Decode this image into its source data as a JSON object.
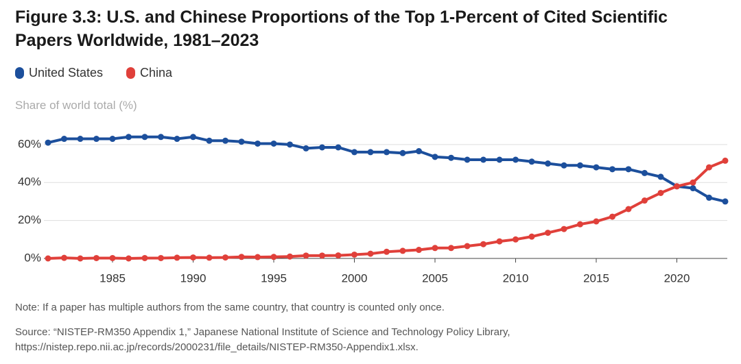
{
  "chart_data": {
    "type": "line",
    "title": "Figure 3.3: U.S. and Chinese Proportions of the Top 1-Percent of Cited Scientific Papers Worldwide, 1981–2023",
    "y_axis_label": "Share of world total (%)",
    "note": "Note: If a paper has multiple authors from the same country, that country is counted only once.",
    "source": "Source: “NISTEP-RM350 Appendix 1,” Japanese National Institute of Science and Technology Policy Library, https://nistep.repo.nii.ac.jp/records/2000231/file_details/NISTEP-RM350-Appendix1.xlsx.",
    "x": [
      1981,
      1982,
      1983,
      1984,
      1985,
      1986,
      1987,
      1988,
      1989,
      1990,
      1991,
      1992,
      1993,
      1994,
      1995,
      1996,
      1997,
      1998,
      1999,
      2000,
      2001,
      2002,
      2003,
      2004,
      2005,
      2006,
      2007,
      2008,
      2009,
      2010,
      2011,
      2012,
      2013,
      2014,
      2015,
      2016,
      2017,
      2018,
      2019,
      2020,
      2021,
      2022,
      2023
    ],
    "series": [
      {
        "name": "United States",
        "color": "#1c4f9c",
        "values": [
          61,
          63,
          63,
          63,
          63,
          64,
          64,
          64,
          63,
          64,
          62,
          62,
          61.5,
          60.5,
          60.5,
          60,
          58,
          58.5,
          58.5,
          56,
          56,
          56,
          55.5,
          56.5,
          53.5,
          53,
          52,
          52,
          52,
          52,
          51,
          50,
          49,
          49,
          48,
          47,
          47,
          45,
          43,
          38,
          37,
          32,
          30
        ]
      },
      {
        "name": "China",
        "color": "#e0403a",
        "values": [
          0,
          0.3,
          0,
          0.2,
          0.2,
          0,
          0.2,
          0.2,
          0.4,
          0.5,
          0.4,
          0.5,
          0.8,
          0.7,
          0.8,
          1,
          1.5,
          1.5,
          1.6,
          2,
          2.5,
          3.5,
          4,
          4.5,
          5.5,
          5.5,
          6.5,
          7.5,
          9,
          10,
          11.5,
          13.5,
          15.5,
          18,
          19.5,
          22,
          26,
          30.5,
          34.5,
          38,
          40,
          48,
          51.5
        ]
      }
    ],
    "xlim": [
      1981,
      2023
    ],
    "ylim": [
      0,
      65
    ],
    "xticks": [
      1985,
      1990,
      1995,
      2000,
      2005,
      2010,
      2015,
      2020
    ],
    "yticks": [
      {
        "value": 0,
        "label": "0%"
      },
      {
        "value": 20,
        "label": "20%"
      },
      {
        "value": 40,
        "label": "40%"
      },
      {
        "value": 60,
        "label": "60%"
      }
    ],
    "grid": true
  }
}
